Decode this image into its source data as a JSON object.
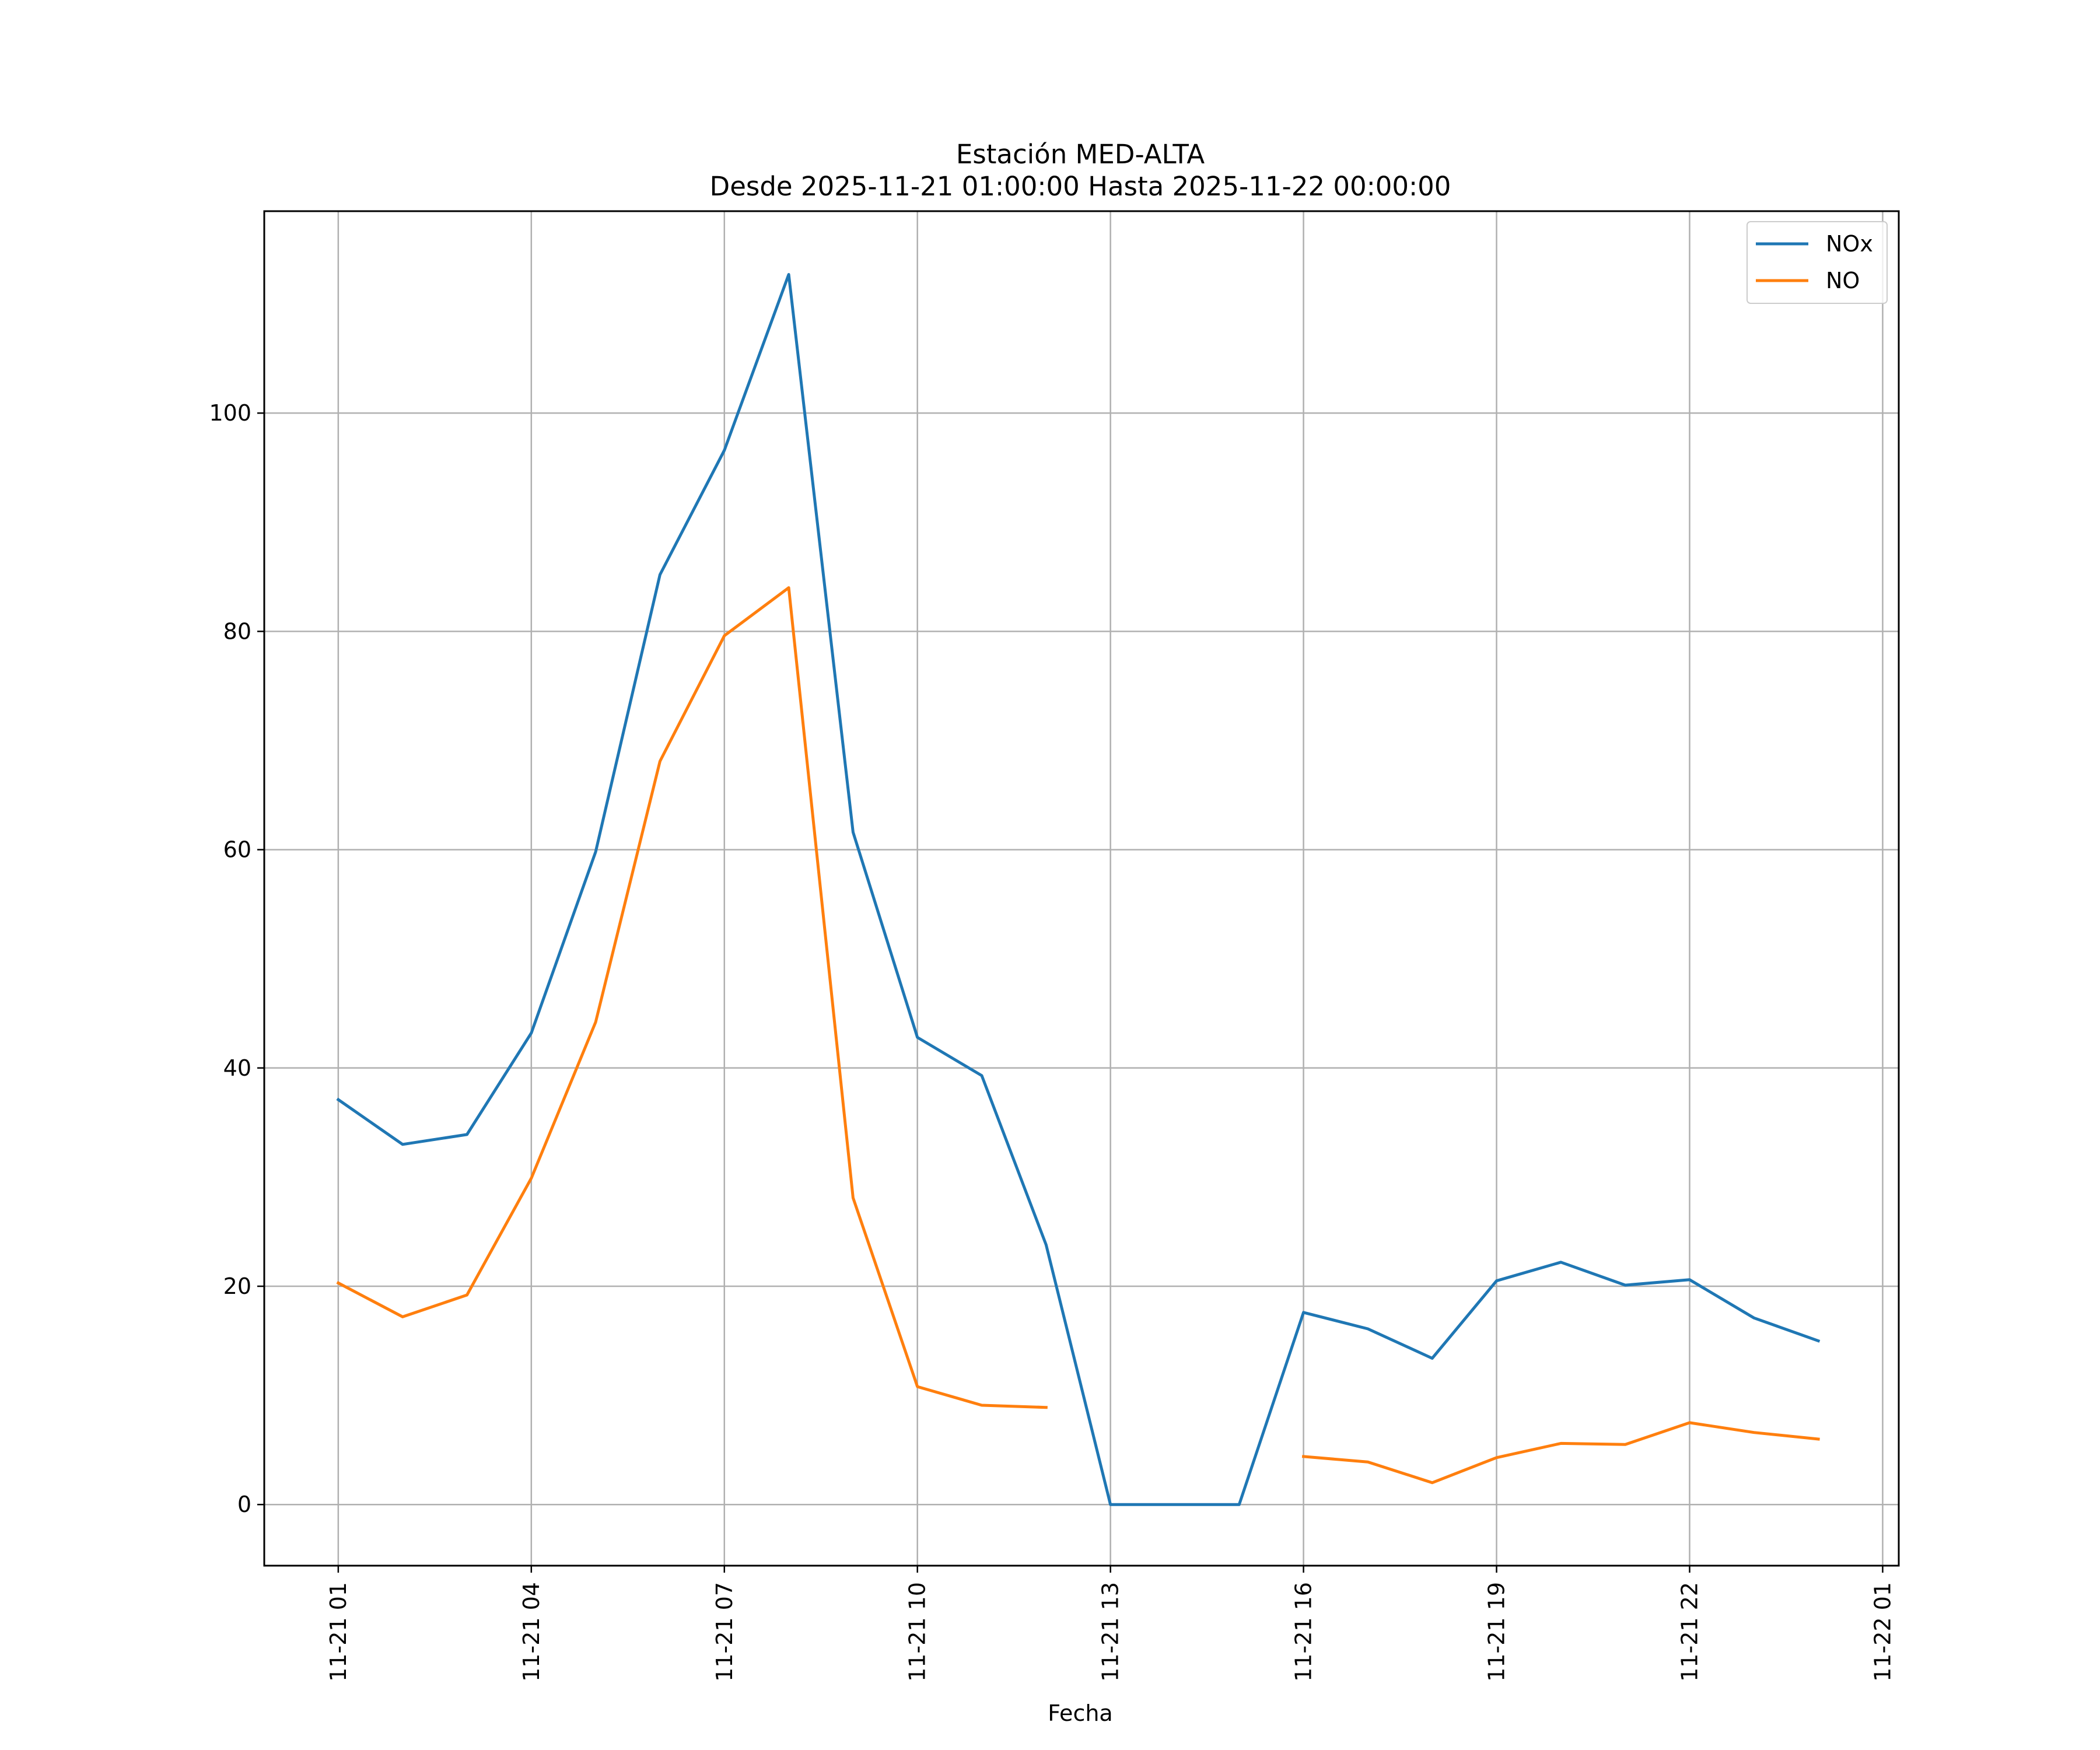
{
  "chart_data": {
    "type": "line",
    "title": "Estación MED-ALTA",
    "subtitle": "Desde 2025-11-21 01:00:00 Hasta 2025-11-22 00:00:00",
    "xlabel": "Fecha",
    "ylabel": "",
    "x_tick_labels": [
      "11-21 01",
      "11-21 04",
      "11-21 07",
      "11-21 10",
      "11-21 13",
      "11-21 16",
      "11-21 19",
      "11-21 22",
      "11-22 01"
    ],
    "y_ticks": [
      0,
      20,
      40,
      60,
      80,
      100
    ],
    "ylim": [
      -5.6,
      118.5
    ],
    "xlim_hours": [
      -1.15,
      24.25
    ],
    "x_hours": [
      0,
      1,
      2,
      3,
      4,
      5,
      6,
      7,
      8,
      9,
      10,
      11,
      12,
      13,
      14,
      15,
      16,
      17,
      18,
      19,
      20,
      21,
      22,
      23
    ],
    "grid": true,
    "legend_position": "top-right",
    "series": [
      {
        "name": "NOx",
        "color": "#1f77b4",
        "values": [
          37.1,
          33.0,
          33.9,
          43.2,
          59.8,
          85.2,
          96.6,
          112.7,
          61.6,
          42.8,
          39.3,
          23.8,
          0,
          0,
          0,
          17.6,
          16.1,
          13.4,
          20.5,
          22.2,
          20.1,
          20.6,
          17.1,
          15.0
        ]
      },
      {
        "name": "NO",
        "color": "#ff7f0e",
        "values": [
          20.3,
          17.2,
          19.2,
          29.9,
          44.2,
          68.1,
          79.6,
          84.0,
          28.1,
          10.8,
          9.1,
          8.9,
          null,
          null,
          null,
          4.4,
          3.9,
          2.0,
          4.3,
          5.6,
          5.5,
          7.5,
          6.6,
          6.0
        ]
      }
    ]
  }
}
